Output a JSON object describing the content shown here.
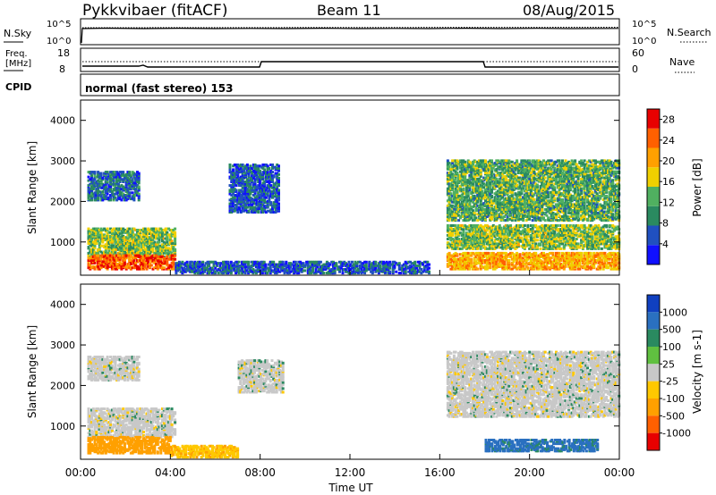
{
  "header": {
    "radar": "Pykkvibaer (fitACF)",
    "beam": "Beam 11",
    "date": "08/Aug/2015"
  },
  "strip": {
    "nsky_label": "N.Sky",
    "nsearch_label": "N.Search",
    "nsky_ticks": [
      "10^5",
      "10^0"
    ],
    "nsearch_ticks": [
      "10^5",
      "10^0"
    ],
    "freq_label_1": "Freq.",
    "freq_label_2": "[MHz]",
    "freq_ticks": [
      "18",
      "8"
    ],
    "nave_label": "Nave",
    "nave_ticks": [
      "60",
      "0"
    ],
    "cpid_label": "CPID",
    "cpid_value": "normal (fast stereo) 153"
  },
  "axes": {
    "xlabel": "Time UT",
    "ylabel": "Slant Range [km]",
    "x_ticks": [
      "00:00",
      "04:00",
      "08:00",
      "12:00",
      "16:00",
      "20:00",
      "00:00"
    ],
    "y_ticks": [
      "1000",
      "2000",
      "3000",
      "4000"
    ]
  },
  "power_scale": {
    "label": "Power [dB]",
    "ticks": [
      "4",
      "8",
      "12",
      "16",
      "20",
      "24",
      "28"
    ],
    "colors": [
      "#1010ff",
      "#2050c0",
      "#2a8a60",
      "#50b060",
      "#f0d000",
      "#ffa000",
      "#ff6000",
      "#e80000"
    ]
  },
  "velocity_scale": {
    "label": "Velocity [m s-1]",
    "ticks": [
      "1000",
      "500",
      "100",
      "25",
      "-25",
      "-100",
      "-500",
      "-1000"
    ],
    "colors": [
      "#1040c0",
      "#2a70c0",
      "#2a8a60",
      "#60c040",
      "#c8c8c8",
      "#ffc800",
      "#ffa000",
      "#ff6000",
      "#e80000"
    ]
  },
  "chart_data": [
    {
      "type": "heatmap",
      "panel": "power",
      "x_range_hours": [
        0,
        24
      ],
      "y_range_km": [
        180,
        4500
      ],
      "colorbar_range_db": [
        0,
        30
      ],
      "regions": [
        {
          "t0": 0.3,
          "t1": 2.6,
          "r0": 2000,
          "r1": 2700,
          "v": 7
        },
        {
          "t0": 0.3,
          "t1": 4.2,
          "r0": 600,
          "r1": 1300,
          "v": 14
        },
        {
          "t0": 0.3,
          "t1": 4.2,
          "r0": 300,
          "r1": 650,
          "v": 25
        },
        {
          "t0": 4.2,
          "t1": 15.5,
          "r0": 200,
          "r1": 500,
          "v": 6
        },
        {
          "t0": 6.6,
          "t1": 8.8,
          "r0": 1700,
          "r1": 2900,
          "v": 6
        },
        {
          "t0": 16.3,
          "t1": 24,
          "r0": 1500,
          "r1": 3000,
          "v": 12
        },
        {
          "t0": 16.3,
          "t1": 24,
          "r0": 800,
          "r1": 1400,
          "v": 14
        },
        {
          "t0": 16.3,
          "t1": 24,
          "r0": 300,
          "r1": 700,
          "v": 20
        }
      ]
    },
    {
      "type": "heatmap",
      "panel": "velocity",
      "x_range_hours": [
        0,
        24
      ],
      "y_range_km": [
        180,
        4500
      ],
      "colorbar_range_ms": [
        -1000,
        1000
      ],
      "regions": [
        {
          "t0": 0.3,
          "t1": 2.6,
          "r0": 2100,
          "r1": 2700,
          "v": 0
        },
        {
          "t0": 0.3,
          "t1": 4.2,
          "r0": 700,
          "r1": 1400,
          "v": 0
        },
        {
          "t0": 0.3,
          "t1": 4.0,
          "r0": 300,
          "r1": 700,
          "v": -300
        },
        {
          "t0": 4.0,
          "t1": 7.0,
          "r0": 200,
          "r1": 500,
          "v": -80
        },
        {
          "t0": 7.0,
          "t1": 9.0,
          "r0": 1800,
          "r1": 2600,
          "v": 0
        },
        {
          "t0": 16.3,
          "t1": 24,
          "r0": 1200,
          "r1": 2800,
          "v": 0
        },
        {
          "t0": 18.0,
          "t1": 23.0,
          "r0": 350,
          "r1": 650,
          "v": 150
        }
      ]
    }
  ]
}
